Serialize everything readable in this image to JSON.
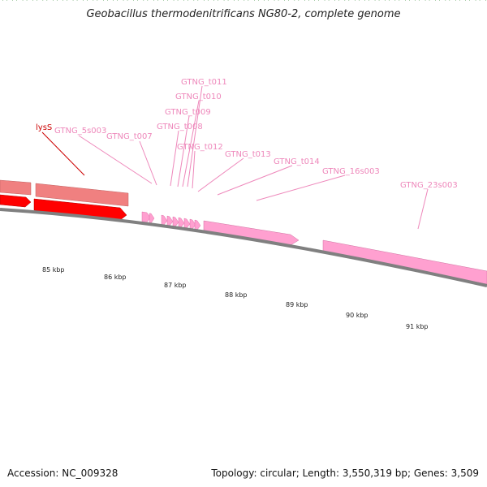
{
  "title": "Geobacillus thermodenitrificans NG80-2, complete genome",
  "footer": {
    "accession": "Accession: NC_009328",
    "summary": "Topology: circular; Length: 3,550,319 bp; Genes: 3,509"
  },
  "colors": {
    "backbone": "#808080",
    "feature_red": "#ff0000",
    "feature_red_dark": "#d00000",
    "feature_salmon": "#f08080",
    "feature_pink": "#ffa0d0",
    "label_red": "#cc0000",
    "label_pink": "#ee88bb",
    "tick": "#1a7a1a"
  },
  "tick_labels": [
    "85 kbp",
    "86 kbp",
    "87 kbp",
    "88 kbp",
    "89 kbp",
    "90 kbp",
    "91 kbp"
  ],
  "feature_labels": [
    {
      "name": "lysS",
      "color": "red"
    },
    {
      "name": "GTNG_5s003",
      "color": "pink"
    },
    {
      "name": "GTNG_t007",
      "color": "pink"
    },
    {
      "name": "GTNG_t011",
      "color": "pink"
    },
    {
      "name": "GTNG_t010",
      "color": "pink"
    },
    {
      "name": "GTNG_t009",
      "color": "pink"
    },
    {
      "name": "GTNG_t008",
      "color": "pink"
    },
    {
      "name": "GTNG_t012",
      "color": "pink"
    },
    {
      "name": "GTNG_t013",
      "color": "pink"
    },
    {
      "name": "GTNG_t014",
      "color": "pink"
    },
    {
      "name": "GTNG_16s003",
      "color": "pink"
    },
    {
      "name": "GTNG_23s003",
      "color": "pink"
    }
  ]
}
